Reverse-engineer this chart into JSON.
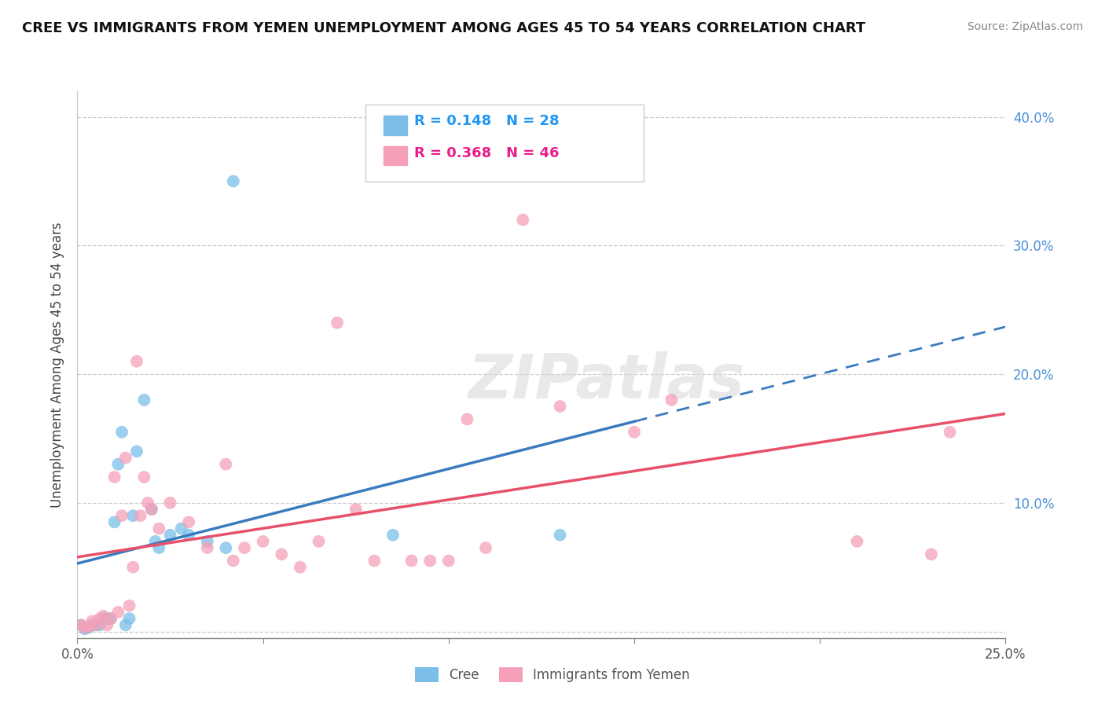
{
  "title": "CREE VS IMMIGRANTS FROM YEMEN UNEMPLOYMENT AMONG AGES 45 TO 54 YEARS CORRELATION CHART",
  "source": "Source: ZipAtlas.com",
  "ylabel": "Unemployment Among Ages 45 to 54 years",
  "xlim": [
    0.0,
    0.25
  ],
  "ylim": [
    -0.005,
    0.42
  ],
  "xticks": [
    0.0,
    0.05,
    0.1,
    0.15,
    0.2,
    0.25
  ],
  "xticklabels": [
    "0.0%",
    "",
    "",
    "",
    "",
    "25.0%"
  ],
  "yticks": [
    0.0,
    0.1,
    0.2,
    0.3,
    0.4
  ],
  "yticklabels_right": [
    "",
    "10.0%",
    "20.0%",
    "30.0%",
    "40.0%"
  ],
  "cree_color": "#7bbfe8",
  "yemen_color": "#f5a0b8",
  "cree_R": 0.148,
  "cree_N": 28,
  "yemen_R": 0.368,
  "yemen_N": 46,
  "cree_line_color": "#3a7bbf",
  "yemen_line_color": "#e8506a",
  "legend_R_color": "#2196f3",
  "legend_N_color": "#2196f3",
  "legend_R2_color": "#e91e8c",
  "watermark": "ZIPatlas",
  "cree_x": [
    0.001,
    0.002,
    0.003,
    0.004,
    0.005,
    0.006,
    0.007,
    0.008,
    0.009,
    0.01,
    0.011,
    0.012,
    0.013,
    0.014,
    0.015,
    0.016,
    0.018,
    0.02,
    0.021,
    0.022,
    0.025,
    0.028,
    0.03,
    0.035,
    0.04,
    0.042,
    0.085,
    0.13
  ],
  "cree_y": [
    0.005,
    0.002,
    0.003,
    0.005,
    0.005,
    0.005,
    0.01,
    0.01,
    0.01,
    0.085,
    0.13,
    0.155,
    0.005,
    0.01,
    0.09,
    0.14,
    0.18,
    0.095,
    0.07,
    0.065,
    0.075,
    0.08,
    0.075,
    0.07,
    0.065,
    0.35,
    0.075,
    0.075
  ],
  "yemen_x": [
    0.001,
    0.002,
    0.003,
    0.004,
    0.005,
    0.006,
    0.007,
    0.008,
    0.009,
    0.01,
    0.011,
    0.012,
    0.013,
    0.014,
    0.015,
    0.016,
    0.017,
    0.018,
    0.019,
    0.02,
    0.022,
    0.025,
    0.03,
    0.035,
    0.04,
    0.042,
    0.045,
    0.05,
    0.055,
    0.06,
    0.065,
    0.07,
    0.075,
    0.08,
    0.09,
    0.095,
    0.1,
    0.105,
    0.11,
    0.12,
    0.13,
    0.15,
    0.16,
    0.21,
    0.23,
    0.235
  ],
  "yemen_y": [
    0.005,
    0.003,
    0.004,
    0.008,
    0.005,
    0.01,
    0.012,
    0.005,
    0.01,
    0.12,
    0.015,
    0.09,
    0.135,
    0.02,
    0.05,
    0.21,
    0.09,
    0.12,
    0.1,
    0.095,
    0.08,
    0.1,
    0.085,
    0.065,
    0.13,
    0.055,
    0.065,
    0.07,
    0.06,
    0.05,
    0.07,
    0.24,
    0.095,
    0.055,
    0.055,
    0.055,
    0.055,
    0.165,
    0.065,
    0.32,
    0.175,
    0.155,
    0.18,
    0.07,
    0.06,
    0.155
  ]
}
